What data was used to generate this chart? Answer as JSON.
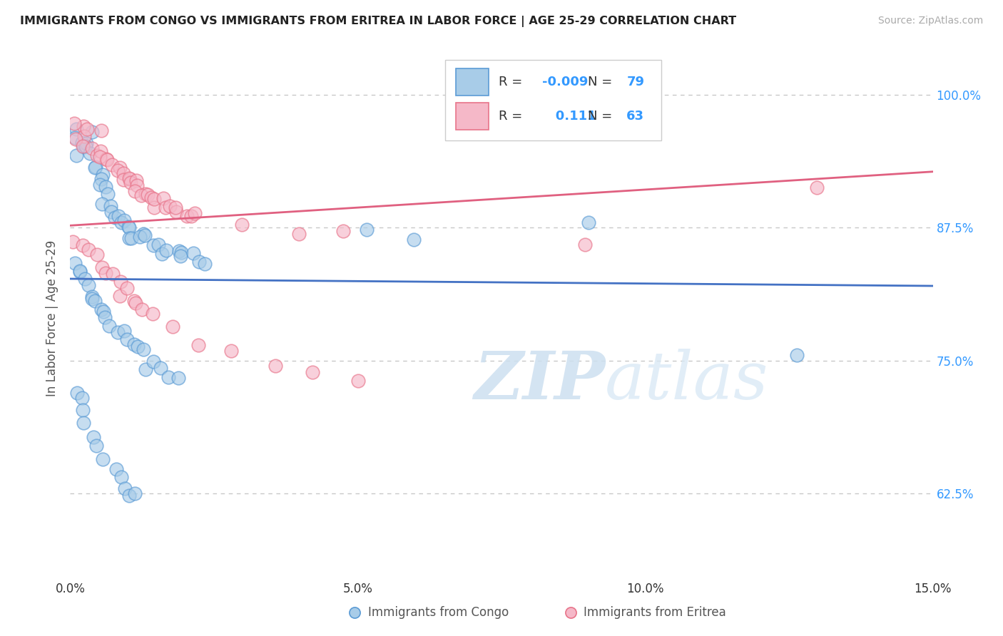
{
  "title": "IMMIGRANTS FROM CONGO VS IMMIGRANTS FROM ERITREA IN LABOR FORCE | AGE 25-29 CORRELATION CHART",
  "source": "Source: ZipAtlas.com",
  "ylabel": "In Labor Force | Age 25-29",
  "legend_label_1": "Immigrants from Congo",
  "legend_label_2": "Immigrants from Eritrea",
  "R1": "-0.009",
  "N1": "79",
  "R2": "0.111",
  "N2": "63",
  "color_congo_fill": "#a8cce8",
  "color_congo_edge": "#5b9bd5",
  "color_eritrea_fill": "#f5b8c8",
  "color_eritrea_edge": "#e8748a",
  "color_congo_line": "#4472c4",
  "color_eritrea_line": "#e06080",
  "xlim": [
    0.0,
    0.15
  ],
  "ylim": [
    0.545,
    1.035
  ],
  "yticks": [
    0.625,
    0.75,
    0.875,
    1.0
  ],
  "ytick_labels": [
    "62.5%",
    "75.0%",
    "87.5%",
    "100.0%"
  ],
  "xticks": [
    0.0,
    0.05,
    0.1,
    0.15
  ],
  "xtick_labels": [
    "0.0%",
    "5.0%",
    "10.0%",
    "15.0%"
  ],
  "background_color": "#ffffff",
  "grid_color": "#c8c8c8",
  "watermark": "ZIPatlas",
  "congo_x": [
    0.001,
    0.001,
    0.002,
    0.002,
    0.002,
    0.003,
    0.003,
    0.003,
    0.004,
    0.004,
    0.004,
    0.005,
    0.005,
    0.005,
    0.006,
    0.006,
    0.006,
    0.007,
    0.007,
    0.008,
    0.008,
    0.009,
    0.009,
    0.01,
    0.01,
    0.011,
    0.011,
    0.012,
    0.012,
    0.013,
    0.014,
    0.015,
    0.016,
    0.017,
    0.018,
    0.019,
    0.02,
    0.021,
    0.022,
    0.023,
    0.001,
    0.001,
    0.002,
    0.002,
    0.003,
    0.003,
    0.004,
    0.004,
    0.005,
    0.006,
    0.006,
    0.007,
    0.008,
    0.009,
    0.01,
    0.011,
    0.012,
    0.013,
    0.014,
    0.015,
    0.016,
    0.017,
    0.018,
    0.001,
    0.002,
    0.002,
    0.003,
    0.004,
    0.005,
    0.006,
    0.007,
    0.008,
    0.009,
    0.01,
    0.011,
    0.052,
    0.127,
    0.09,
    0.06
  ],
  "congo_y": [
    0.97,
    0.96,
    0.955,
    0.95,
    0.945,
    0.965,
    0.958,
    0.948,
    0.94,
    0.935,
    0.93,
    0.925,
    0.92,
    0.915,
    0.91,
    0.905,
    0.9,
    0.895,
    0.89,
    0.887,
    0.885,
    0.88,
    0.878,
    0.876,
    0.874,
    0.872,
    0.87,
    0.868,
    0.866,
    0.865,
    0.862,
    0.86,
    0.858,
    0.856,
    0.854,
    0.852,
    0.85,
    0.848,
    0.847,
    0.845,
    0.84,
    0.835,
    0.83,
    0.825,
    0.82,
    0.815,
    0.81,
    0.805,
    0.8,
    0.795,
    0.79,
    0.785,
    0.78,
    0.775,
    0.77,
    0.765,
    0.76,
    0.755,
    0.75,
    0.745,
    0.74,
    0.735,
    0.73,
    0.72,
    0.71,
    0.7,
    0.69,
    0.68,
    0.67,
    0.66,
    0.65,
    0.64,
    0.63,
    0.625,
    0.62,
    0.875,
    0.755,
    0.88,
    0.87
  ],
  "eritrea_x": [
    0.001,
    0.001,
    0.002,
    0.002,
    0.003,
    0.003,
    0.004,
    0.004,
    0.005,
    0.005,
    0.006,
    0.006,
    0.007,
    0.007,
    0.008,
    0.008,
    0.009,
    0.009,
    0.01,
    0.01,
    0.011,
    0.011,
    0.012,
    0.012,
    0.013,
    0.013,
    0.014,
    0.014,
    0.015,
    0.015,
    0.016,
    0.016,
    0.017,
    0.018,
    0.019,
    0.02,
    0.021,
    0.022,
    0.03,
    0.04,
    0.048,
    0.001,
    0.002,
    0.003,
    0.004,
    0.005,
    0.006,
    0.007,
    0.008,
    0.009,
    0.01,
    0.011,
    0.012,
    0.013,
    0.014,
    0.018,
    0.022,
    0.028,
    0.035,
    0.042,
    0.05,
    0.13,
    0.09
  ],
  "eritrea_y": [
    0.975,
    0.965,
    0.96,
    0.955,
    0.97,
    0.95,
    0.948,
    0.945,
    0.96,
    0.942,
    0.94,
    0.938,
    0.935,
    0.932,
    0.93,
    0.928,
    0.926,
    0.924,
    0.922,
    0.92,
    0.918,
    0.916,
    0.914,
    0.912,
    0.91,
    0.908,
    0.906,
    0.904,
    0.902,
    0.9,
    0.898,
    0.896,
    0.894,
    0.892,
    0.89,
    0.888,
    0.886,
    0.884,
    0.875,
    0.87,
    0.868,
    0.86,
    0.855,
    0.85,
    0.845,
    0.84,
    0.835,
    0.83,
    0.825,
    0.82,
    0.815,
    0.81,
    0.805,
    0.8,
    0.795,
    0.78,
    0.77,
    0.76,
    0.75,
    0.74,
    0.73,
    0.91,
    0.86
  ]
}
